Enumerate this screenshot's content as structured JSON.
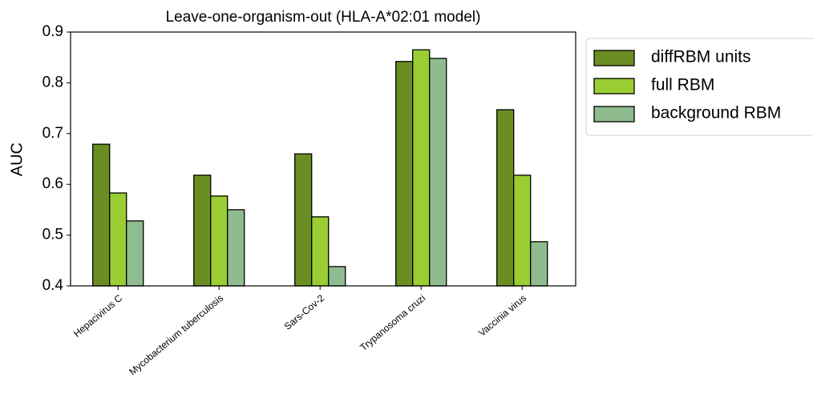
{
  "chart_data": {
    "type": "bar",
    "title": "Leave-one-organism-out (HLA-A*02:01 model)",
    "y_label": "AUC",
    "categories": [
      "Hepacivirus C",
      "Mycobacterium tuberculosis",
      "Sars-Cov-2",
      "Trypanosoma cruzi",
      "Vaccinia virus"
    ],
    "series": [
      {
        "name": "diffRBM units",
        "color": "#6b8e23",
        "values": [
          0.679,
          0.618,
          0.66,
          0.842,
          0.747
        ]
      },
      {
        "name": "full RBM",
        "color": "#9acd32",
        "values": [
          0.583,
          0.577,
          0.536,
          0.865,
          0.618
        ]
      },
      {
        "name": "background RBM",
        "color": "#8fbc8f",
        "values": [
          0.528,
          0.55,
          0.438,
          0.848,
          0.487
        ]
      }
    ],
    "ylim": [
      0.4,
      0.9
    ],
    "yticks": [
      0.4,
      0.5,
      0.6,
      0.7,
      0.8,
      0.9
    ],
    "legend": "outside-right-top"
  }
}
